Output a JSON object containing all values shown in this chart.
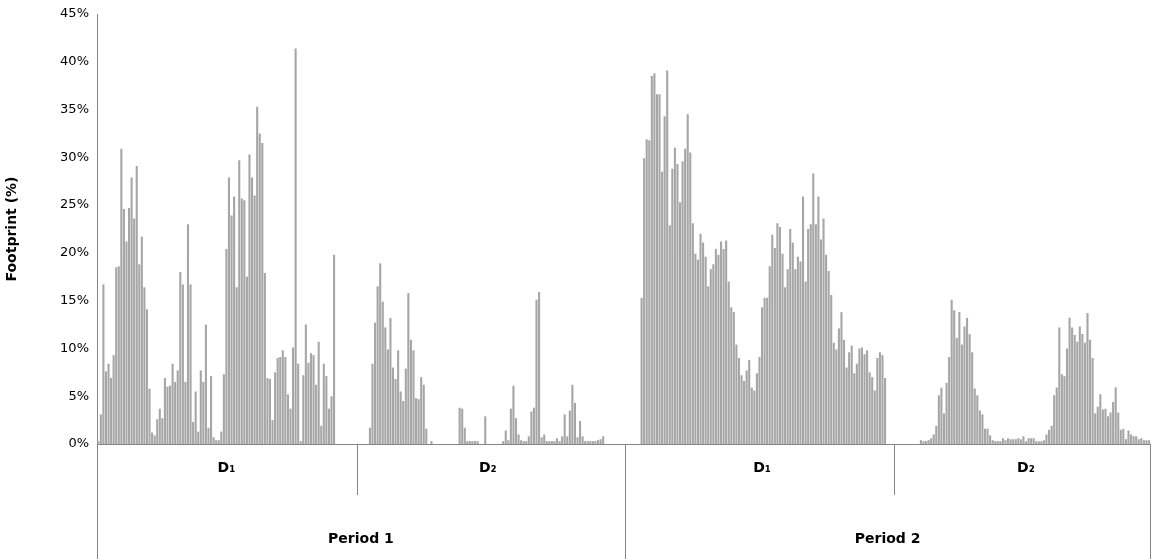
{
  "chart_data": {
    "type": "bar",
    "ylabel": "Footprint (%)",
    "color": "#a6a6a6",
    "categories": [
      null,
      null,
      null,
      null,
      null,
      null,
      null,
      null,
      null,
      null,
      null,
      null,
      null,
      null,
      null,
      null,
      null,
      null,
      null,
      null,
      null,
      null,
      null,
      null,
      null,
      null,
      null,
      null,
      null,
      null,
      null,
      null,
      null,
      null,
      null,
      null,
      null,
      null,
      null,
      null,
      null,
      null,
      null,
      null,
      null,
      null,
      null,
      null,
      null,
      null,
      "D₁",
      null,
      null,
      null,
      null,
      null,
      null,
      null,
      null,
      null,
      null,
      null,
      null,
      null,
      null,
      null,
      null,
      null,
      null,
      null,
      null,
      null,
      null,
      null,
      null,
      null,
      null,
      null,
      null,
      null,
      null,
      null,
      null,
      null,
      null,
      null,
      null,
      null,
      null,
      null,
      null,
      null,
      null,
      null,
      null,
      null,
      null,
      null,
      null,
      null,
      null,
      null,
      null,
      null,
      null,
      null,
      null,
      null,
      null,
      null,
      null,
      null,
      null,
      null,
      null,
      null,
      null,
      null,
      null,
      null,
      null,
      null,
      null,
      null,
      null,
      null,
      null,
      null,
      null,
      null,
      null,
      null,
      null,
      null,
      null,
      null,
      null,
      null,
      null,
      null,
      null,
      null,
      null,
      null,
      null,
      null,
      null,
      null,
      null,
      null,
      null,
      null,
      "D₂",
      null,
      null,
      null,
      null,
      null,
      null,
      null,
      null,
      null,
      null,
      null,
      null,
      null,
      null,
      null,
      null,
      null,
      null,
      null,
      null,
      null,
      null,
      null,
      null,
      null,
      null,
      null,
      null,
      null,
      null,
      null,
      null,
      null,
      null,
      null,
      null,
      null,
      null,
      null,
      null,
      null,
      null,
      null,
      null,
      null,
      null,
      null,
      null,
      null,
      null,
      null,
      null,
      null,
      null,
      null,
      null,
      null,
      null,
      null,
      null,
      null,
      null,
      null,
      null,
      null,
      null,
      null,
      null,
      null,
      null,
      null,
      null,
      null,
      null,
      null,
      null,
      null,
      null,
      null,
      null,
      null,
      null,
      null,
      null,
      null,
      null,
      null,
      null,
      null,
      null,
      null,
      null,
      null,
      null,
      null,
      null,
      null,
      null,
      null,
      null,
      null,
      null,
      null,
      null,
      null,
      null,
      "D₁",
      null,
      null,
      null,
      null,
      null,
      null,
      null,
      null,
      null,
      null,
      null,
      null,
      null,
      null,
      null,
      null,
      null,
      null,
      null,
      null,
      null,
      null,
      null,
      null,
      null,
      null,
      null,
      null,
      null,
      null,
      null,
      null,
      null,
      null,
      null,
      null,
      null,
      null,
      null,
      null,
      null,
      null,
      null,
      null,
      null,
      null,
      null,
      null,
      null,
      null,
      null,
      null,
      null,
      null,
      null,
      null,
      null,
      null,
      null,
      null,
      null,
      null,
      null,
      null,
      null,
      null,
      null,
      null,
      null,
      null,
      null,
      null,
      null,
      null,
      null,
      null,
      null,
      null,
      null,
      null,
      null,
      null,
      null,
      null,
      null,
      null,
      null,
      null,
      null,
      null,
      null,
      null,
      null,
      null,
      null,
      null,
      null,
      null,
      null,
      null,
      null,
      null,
      "D₂",
      null,
      null,
      null,
      null,
      null,
      null,
      null,
      null,
      null,
      null,
      null,
      null,
      null,
      null,
      null,
      null,
      null,
      null,
      null,
      null,
      null,
      null,
      null,
      null,
      null,
      null,
      null,
      null,
      null,
      null,
      null,
      null,
      null,
      null,
      null,
      null,
      null,
      null,
      null,
      null,
      null,
      null,
      null,
      null,
      null,
      null,
      null,
      null
    ],
    "values": [
      0.3,
      3.1,
      16.7,
      7.6,
      8.4,
      6.9,
      9.3,
      18.5,
      18.6,
      30.9,
      24.6,
      21.2,
      24.7,
      27.9,
      23.6,
      29.1,
      18.8,
      21.7,
      16.4,
      14.1,
      5.8,
      1.2,
      0.9,
      2.6,
      3.7,
      2.7,
      6.9,
      6.0,
      6.1,
      8.4,
      6.5,
      7.7,
      18.0,
      16.7,
      6.5,
      23.0,
      16.7,
      2.3,
      5.5,
      1.3,
      7.7,
      6.5,
      12.5,
      1.7,
      7.1,
      0.7,
      0.4,
      0.4,
      1.3,
      7.3,
      20.4,
      27.9,
      23.9,
      25.9,
      16.4,
      29.7,
      25.7,
      25.5,
      17.5,
      30.3,
      27.9,
      26.0,
      35.3,
      32.5,
      31.5,
      17.9,
      6.9,
      6.8,
      2.5,
      7.5,
      9.0,
      9.1,
      9.8,
      9.1,
      5.2,
      3.7,
      10.1,
      41.4,
      8.4,
      0.3,
      7.2,
      12.5,
      8.5,
      9.5,
      9.3,
      6.2,
      10.7,
      1.9,
      8.4,
      7.1,
      3.7,
      5.0,
      19.8,
      0,
      0,
      0,
      0,
      0,
      0,
      0,
      0,
      0,
      0,
      0,
      0,
      0,
      1.7,
      8.4,
      12.7,
      16.5,
      18.9,
      14.9,
      12.2,
      9.9,
      13.2,
      8.0,
      6.8,
      9.8,
      5.5,
      4.5,
      7.9,
      15.8,
      10.9,
      9.8,
      4.8,
      4.7,
      7.0,
      6.2,
      1.6,
      0,
      0.3,
      0,
      0,
      0,
      0,
      0,
      0,
      0,
      0,
      0,
      0,
      3.8,
      3.7,
      1.7,
      0.3,
      0.3,
      0.3,
      0.3,
      0.3,
      0,
      0,
      2.9,
      0,
      0,
      0,
      0,
      0,
      0,
      0.3,
      1.4,
      0.4,
      3.7,
      6.1,
      2.7,
      1.0,
      0.4,
      0.3,
      0.3,
      0.8,
      3.4,
      3.8,
      15.1,
      15.9,
      0.7,
      1.0,
      0.3,
      0.3,
      0.3,
      0.3,
      0.6,
      0.3,
      0.8,
      3.1,
      0.8,
      3.5,
      6.2,
      4.3,
      0.7,
      2.4,
      0.8,
      0.3,
      0.3,
      0.3,
      0.3,
      0.3,
      0.4,
      0.5,
      0.8,
      0,
      0,
      0,
      0,
      0,
      0,
      0,
      0,
      0,
      0,
      0,
      0,
      0,
      0,
      15.3,
      29.9,
      31.9,
      31.8,
      38.5,
      38.8,
      36.6,
      36.6,
      28.5,
      34.3,
      39.1,
      22.9,
      28.8,
      31.0,
      29.3,
      25.3,
      29.6,
      30.9,
      34.5,
      30.5,
      23.1,
      19.9,
      19.3,
      22.0,
      21.1,
      19.6,
      16.5,
      18.3,
      18.8,
      20.4,
      19.8,
      21.2,
      20.4,
      21.3,
      17.0,
      14.3,
      13.8,
      10.4,
      9.0,
      7.2,
      6.6,
      7.7,
      8.8,
      5.9,
      5.6,
      7.4,
      9.1,
      14.3,
      15.3,
      15.3,
      18.6,
      21.9,
      20.5,
      23.1,
      22.7,
      19.9,
      16.4,
      18.3,
      22.5,
      21.1,
      18.3,
      19.6,
      19.1,
      25.9,
      17.0,
      22.5,
      23.0,
      28.3,
      23.0,
      25.9,
      21.4,
      23.6,
      19.8,
      18.1,
      15.6,
      10.6,
      9.9,
      12.1,
      13.8,
      10.9,
      8.0,
      9.6,
      10.3,
      7.4,
      8.4,
      10.0,
      10.1,
      9.4,
      9.8,
      7.5,
      7.0,
      5.6,
      9.0,
      9.6,
      9.3,
      6.9,
      0,
      0,
      0,
      0,
      0,
      0,
      0,
      0,
      0,
      0,
      0,
      0,
      0,
      0.4,
      0.3,
      0.3,
      0.4,
      0.6,
      1.0,
      1.9,
      5.1,
      5.9,
      3.2,
      6.4,
      9.1,
      15.1,
      14.0,
      11.1,
      13.8,
      10.4,
      12.3,
      13.2,
      11.5,
      9.6,
      5.8,
      5.1,
      3.5,
      3.1,
      1.6,
      1.6,
      0.9,
      0.4,
      0.3,
      0.3,
      0.3,
      0.6,
      0.4,
      0.6,
      0.5,
      0.5,
      0.5,
      0.6,
      0.5,
      0.8,
      0.3,
      0.6,
      0.6,
      0.6,
      0.3,
      0.3,
      0.3,
      0.4,
      1.0,
      1.5,
      1.9,
      5.1,
      5.9,
      12.2,
      7.3,
      7.1,
      10.0,
      13.2,
      12.2,
      11.4,
      10.7,
      12.3,
      11.5,
      10.6,
      13.7,
      10.9,
      9.0,
      3.2,
      3.9,
      5.2,
      3.6,
      3.7,
      2.9,
      3.3,
      4.4,
      5.9,
      3.3,
      1.5,
      1.6,
      0.5,
      1.4,
      1.0,
      0.8,
      0.8,
      0.5,
      0.6,
      0.4,
      0.4,
      0.4
    ],
    "ylim": [
      0,
      45
    ],
    "yticks": [
      {
        "value": 0,
        "label": "0%"
      },
      {
        "value": 5,
        "label": "5%"
      },
      {
        "value": 10,
        "label": "10%"
      },
      {
        "value": 15,
        "label": "15%"
      },
      {
        "value": 20,
        "label": "20%"
      },
      {
        "value": 25,
        "label": "25%"
      },
      {
        "value": 30,
        "label": "30%"
      },
      {
        "value": 35,
        "label": "35%"
      },
      {
        "value": 40,
        "label": "40%"
      },
      {
        "value": 45,
        "label": "45%"
      }
    ],
    "annotations": [
      "Period 1",
      "Period 2"
    ]
  }
}
